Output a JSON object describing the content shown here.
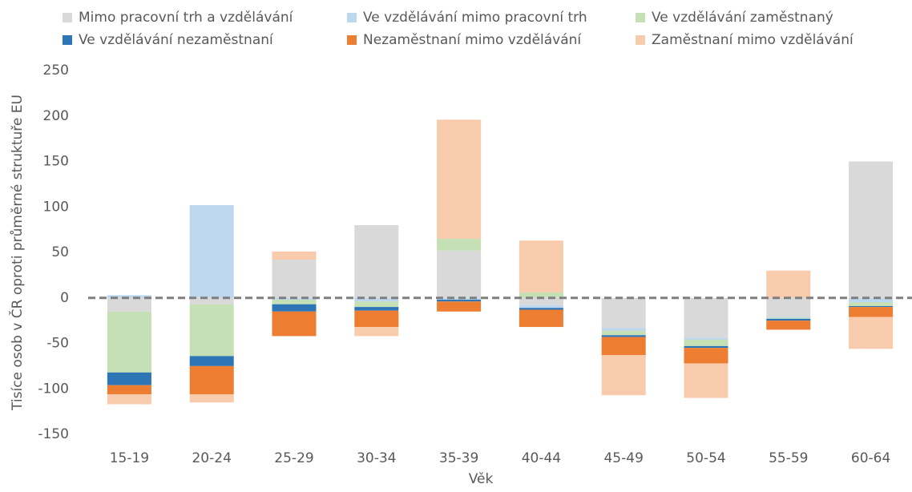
{
  "chart_data": {
    "type": "stacked_bar",
    "x_label": "Věk",
    "y_label": "Tisíce osob v ČR oproti průměrné struktuře EU",
    "categories": [
      "15-19",
      "20-24",
      "25-29",
      "30-34",
      "35-39",
      "40-44",
      "45-49",
      "50-54",
      "55-59",
      "60-64"
    ],
    "series": [
      {
        "name": "Mimo pracovní trh a vzdělávání",
        "color": "#d9d9d9",
        "values": [
          -15,
          -7,
          42,
          80,
          52,
          -8,
          -33,
          -44,
          -21,
          150
        ]
      },
      {
        "name": "Ve vzdělávání mimo pracovní trh",
        "color": "#bdd7ee",
        "values": [
          3,
          102,
          -2,
          -4,
          -2,
          -3,
          -3,
          -2,
          -1,
          -5
        ]
      },
      {
        "name": "Ve vzdělávání zaměstnaný",
        "color": "#c5e0b4",
        "values": [
          -67,
          -57,
          -5,
          -6,
          13,
          6,
          -5,
          -7,
          -1,
          -4
        ]
      },
      {
        "name": "Ve vzdělávání nezaměstnaní",
        "color": "#2e75b6",
        "values": [
          -14,
          -11,
          -8,
          -4,
          -2,
          -2,
          -2,
          -2,
          -2,
          -1
        ]
      },
      {
        "name": "Nezaměstnaní mimo vzdělávání",
        "color": "#ed7d31",
        "values": [
          -10,
          -31,
          -27,
          -18,
          -11,
          -19,
          -20,
          -17,
          -10,
          -11
        ]
      },
      {
        "name": "Zaměstnaní mimo vzdělávání",
        "color": "#f8cbad",
        "values": [
          -11,
          -9,
          9,
          -10,
          131,
          57,
          -44,
          -38,
          30,
          -35
        ]
      }
    ],
    "ylim": [
      -150,
      250
    ],
    "yticks": [
      -150,
      -100,
      -50,
      0,
      50,
      100,
      150,
      200,
      250
    ],
    "legend": "top"
  }
}
